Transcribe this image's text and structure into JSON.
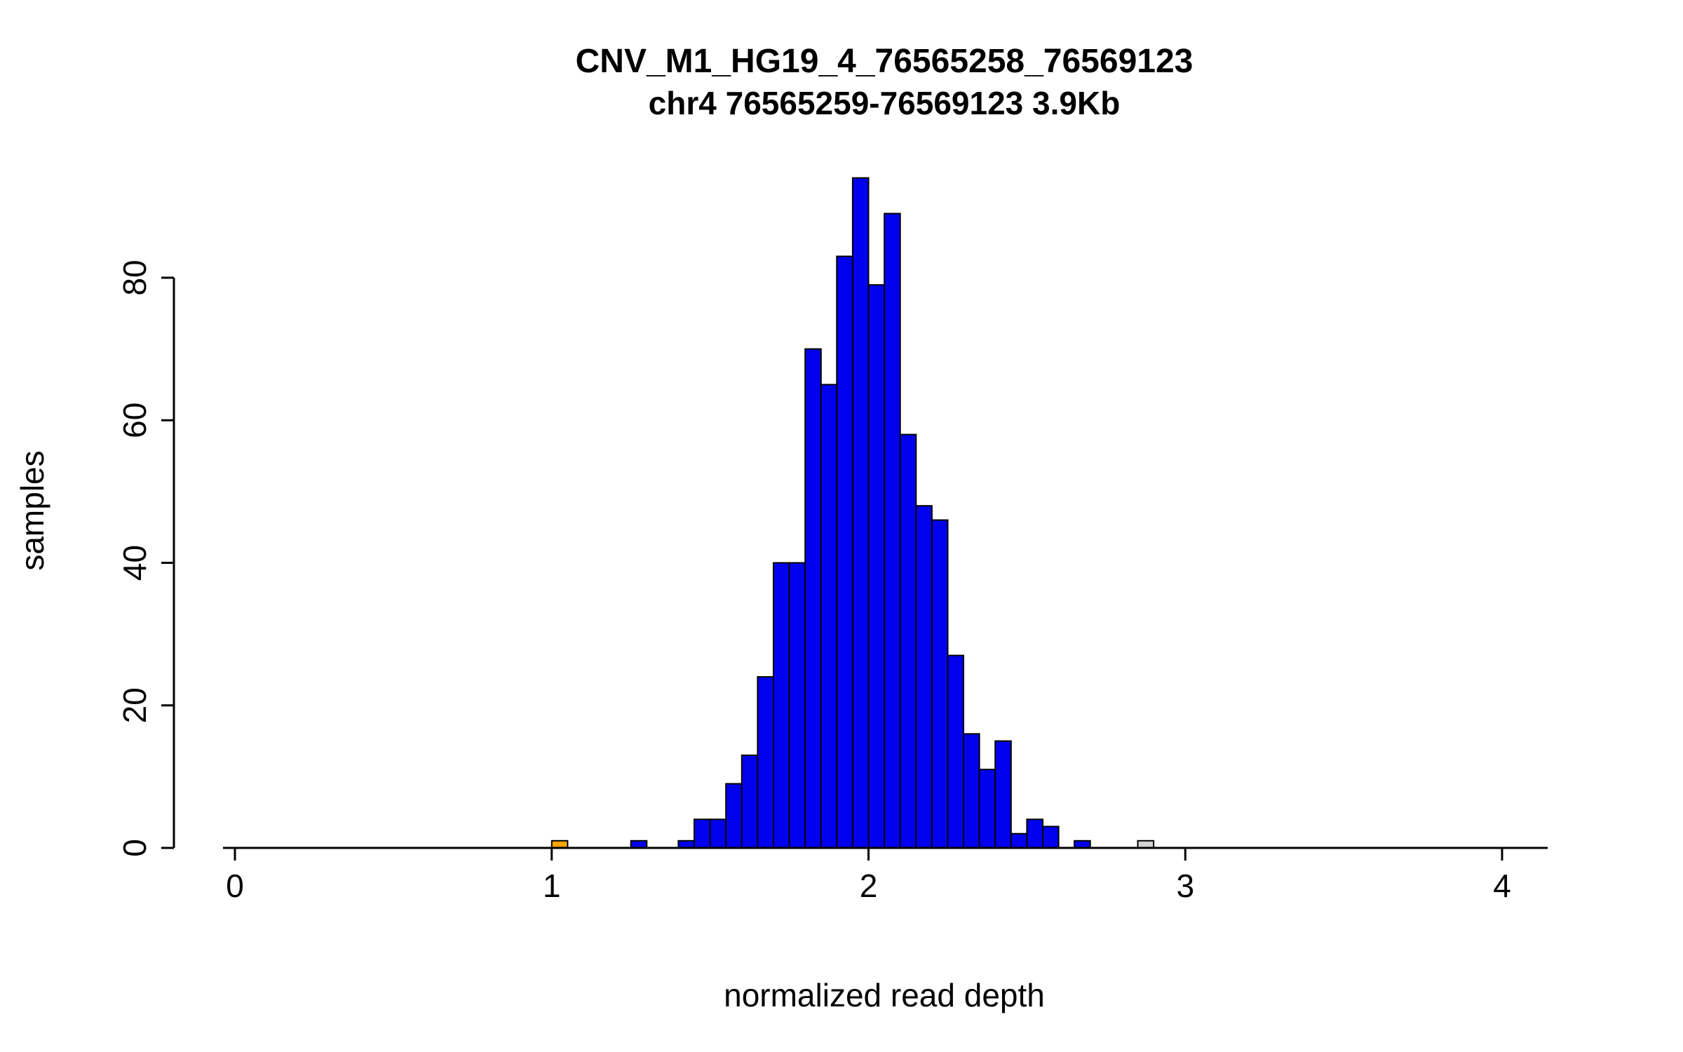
{
  "chart_data": {
    "type": "bar",
    "subtype": "histogram",
    "title": "CNV_M1_HG19_4_76565258_76569123",
    "subtitle": "chr4 76565259-76569123 3.9Kb",
    "xlabel": "normalized read depth",
    "ylabel": "samples",
    "xlim": [
      0,
      4.2
    ],
    "ylim": [
      0,
      94
    ],
    "x_ticks": [
      0,
      1,
      2,
      3,
      4
    ],
    "y_ticks": [
      0,
      20,
      40,
      60,
      80
    ],
    "grid": false,
    "legend": "none",
    "bin_width": 0.05,
    "bar_border_color": "#000000",
    "colors": {
      "blue": "#0000EE",
      "orange": "#FFA500",
      "gray": "#D3D3D3"
    },
    "bins": [
      {
        "x": 1.0,
        "count": 1,
        "color": "orange"
      },
      {
        "x": 1.25,
        "count": 1,
        "color": "blue"
      },
      {
        "x": 1.4,
        "count": 1,
        "color": "blue"
      },
      {
        "x": 1.45,
        "count": 4,
        "color": "blue"
      },
      {
        "x": 1.5,
        "count": 4,
        "color": "blue"
      },
      {
        "x": 1.55,
        "count": 9,
        "color": "blue"
      },
      {
        "x": 1.6,
        "count": 13,
        "color": "blue"
      },
      {
        "x": 1.65,
        "count": 24,
        "color": "blue"
      },
      {
        "x": 1.7,
        "count": 40,
        "color": "blue"
      },
      {
        "x": 1.75,
        "count": 40,
        "color": "blue"
      },
      {
        "x": 1.8,
        "count": 70,
        "color": "blue"
      },
      {
        "x": 1.85,
        "count": 65,
        "color": "blue"
      },
      {
        "x": 1.9,
        "count": 83,
        "color": "blue"
      },
      {
        "x": 1.95,
        "count": 94,
        "color": "blue"
      },
      {
        "x": 2.0,
        "count": 79,
        "color": "blue"
      },
      {
        "x": 2.05,
        "count": 89,
        "color": "blue"
      },
      {
        "x": 2.1,
        "count": 58,
        "color": "blue"
      },
      {
        "x": 2.15,
        "count": 48,
        "color": "blue"
      },
      {
        "x": 2.2,
        "count": 46,
        "color": "blue"
      },
      {
        "x": 2.25,
        "count": 27,
        "color": "blue"
      },
      {
        "x": 2.3,
        "count": 16,
        "color": "blue"
      },
      {
        "x": 2.35,
        "count": 11,
        "color": "blue"
      },
      {
        "x": 2.4,
        "count": 15,
        "color": "blue"
      },
      {
        "x": 2.45,
        "count": 2,
        "color": "blue"
      },
      {
        "x": 2.5,
        "count": 4,
        "color": "blue"
      },
      {
        "x": 2.55,
        "count": 3,
        "color": "blue"
      },
      {
        "x": 2.65,
        "count": 1,
        "color": "blue"
      },
      {
        "x": 2.85,
        "count": 1,
        "color": "gray"
      }
    ]
  }
}
